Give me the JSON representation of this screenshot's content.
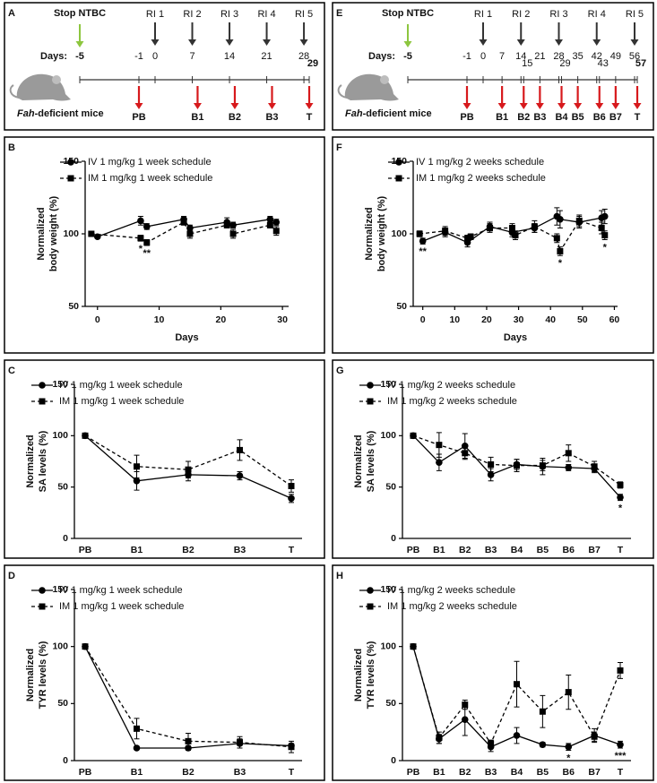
{
  "chart_data": [
    {
      "type": "timeline",
      "panel": "A",
      "stop_label": "Stop NTBC",
      "days_label": "Days:",
      "subject_italic": "Fah",
      "subject": "-deficient mice",
      "day_ticks": [
        -5,
        -1,
        0,
        7,
        14,
        21,
        28,
        29
      ],
      "injections": {
        "labels": [
          "RI 1",
          "RI 2",
          "RI 3",
          "RI 4",
          "RI 5"
        ],
        "days": [
          0,
          7,
          14,
          21,
          28
        ]
      },
      "samples": {
        "labels": [
          "PB",
          "B1",
          "B2",
          "B3",
          "T"
        ],
        "days": [
          -1,
          8,
          15,
          22,
          29
        ]
      },
      "colors": {
        "stop": "#8dc63f",
        "injection": "#333333",
        "sample": "#d7191c"
      }
    },
    {
      "type": "line",
      "panel": "B",
      "ylabel": [
        "Normalized",
        "body weight (%)"
      ],
      "xlabel": "Days",
      "xlim": [
        -2,
        31
      ],
      "xticks": [
        0,
        10,
        20,
        30
      ],
      "ylim": [
        50,
        150
      ],
      "yticks": [
        50,
        100,
        150
      ],
      "legend": "upper left",
      "series": [
        {
          "name": "IV 1 mg/kg 1 week schedule",
          "color": "#000000",
          "marker": "circle",
          "line_style": "solid",
          "x": [
            0,
            7,
            8,
            14,
            15,
            21,
            22,
            28,
            29
          ],
          "values": [
            98,
            109,
            105,
            110,
            104,
            108,
            106,
            110,
            108
          ],
          "errors": [
            1,
            3,
            2,
            2,
            2,
            3,
            2,
            2,
            2
          ]
        },
        {
          "name": "IM 1 mg/kg 1 week schedule",
          "color": "#000000",
          "marker": "square",
          "line_style": "dashed",
          "x": [
            -1,
            7,
            8,
            14,
            15,
            21,
            22,
            28,
            29
          ],
          "values": [
            100,
            97,
            94,
            108,
            100,
            106,
            100,
            106,
            102
          ],
          "errors": [
            1,
            2,
            2,
            2,
            3,
            2,
            3,
            2,
            3
          ]
        }
      ],
      "annotations": [
        {
          "text": "*",
          "x": 7
        },
        {
          "text": "**",
          "x": 8
        }
      ]
    },
    {
      "type": "line",
      "panel": "C",
      "ylabel": [
        "Normalized",
        "SA levels (%)"
      ],
      "categories": [
        "PB",
        "B1",
        "B2",
        "B3",
        "T"
      ],
      "ylim": [
        0,
        150
      ],
      "yticks": [
        0,
        50,
        100,
        150
      ],
      "legend": "upper left",
      "series": [
        {
          "name": "IV 1 mg/kg 1 week schedule",
          "color": "#000000",
          "marker": "circle",
          "line_style": "solid",
          "values": [
            100,
            56,
            62,
            61,
            39
          ],
          "errors": [
            0,
            9,
            6,
            4,
            4
          ]
        },
        {
          "name": "IM 1 mg/kg 1 week schedule",
          "color": "#000000",
          "marker": "square",
          "line_style": "dashed",
          "values": [
            100,
            70,
            67,
            86,
            51
          ],
          "errors": [
            0,
            11,
            8,
            10,
            6
          ]
        }
      ]
    },
    {
      "type": "line",
      "panel": "D",
      "ylabel": [
        "Normalized",
        "TYR levels (%)"
      ],
      "categories": [
        "PB",
        "B1",
        "B2",
        "B3",
        "T"
      ],
      "ylim": [
        0,
        150
      ],
      "yticks": [
        0,
        50,
        100,
        150
      ],
      "legend": "upper left",
      "series": [
        {
          "name": "IV 1 mg/kg 1 week schedule",
          "color": "#000000",
          "marker": "circle",
          "line_style": "solid",
          "values": [
            100,
            11,
            11,
            15,
            13
          ],
          "errors": [
            0,
            1,
            2,
            4,
            2
          ]
        },
        {
          "name": "IM 1 mg/kg 1 week schedule",
          "color": "#000000",
          "marker": "square",
          "line_style": "dashed",
          "values": [
            100,
            28,
            17,
            16,
            12
          ],
          "errors": [
            0,
            9,
            7,
            5,
            5
          ]
        }
      ]
    },
    {
      "type": "timeline",
      "panel": "E",
      "stop_label": "Stop NTBC",
      "days_label": "Days:",
      "subject_italic": "Fah",
      "subject": "-deficient mice",
      "day_ticks": [
        -5,
        -1,
        0,
        7,
        14,
        15,
        21,
        28,
        29,
        35,
        42,
        43,
        49,
        56,
        57
      ],
      "injections": {
        "labels": [
          "RI 1",
          "RI 2",
          "RI 3",
          "RI 4",
          "RI 5"
        ],
        "days": [
          0,
          14,
          28,
          42,
          56
        ]
      },
      "samples": {
        "labels": [
          "PB",
          "B1",
          "B2",
          "B3",
          "B4",
          "B5",
          "B6",
          "B7",
          "T"
        ],
        "days": [
          -1,
          7,
          15,
          21,
          29,
          35,
          43,
          49,
          57
        ]
      },
      "colors": {
        "stop": "#8dc63f",
        "injection": "#333333",
        "sample": "#d7191c"
      }
    },
    {
      "type": "line",
      "panel": "F",
      "ylabel": [
        "Normalized",
        "body weight (%)"
      ],
      "xlabel": "Days",
      "xlim": [
        -3,
        61
      ],
      "xticks": [
        0,
        10,
        20,
        30,
        40,
        50,
        60
      ],
      "ylim": [
        50,
        150
      ],
      "yticks": [
        50,
        100,
        150
      ],
      "legend": "upper left",
      "series": [
        {
          "name": "IV 1 mg/kg 2 weeks schedule",
          "color": "#000000",
          "marker": "circle",
          "line_style": "solid",
          "x": [
            0,
            7,
            14,
            21,
            28,
            35,
            42,
            43,
            49,
            56,
            57
          ],
          "values": [
            95,
            101,
            94,
            105,
            101,
            104,
            112,
            110,
            108,
            111,
            112
          ],
          "errors": [
            2,
            3,
            3,
            3,
            3,
            3,
            6,
            6,
            4,
            5,
            5
          ]
        },
        {
          "name": "IM 1 mg/kg 2 weeks schedule",
          "color": "#000000",
          "marker": "square",
          "line_style": "dashed",
          "x": [
            -1,
            7,
            14,
            15,
            21,
            28,
            29,
            35,
            42,
            43,
            49,
            56,
            57
          ],
          "values": [
            100,
            102,
            97,
            98,
            104,
            104,
            99,
            105,
            97,
            88,
            109,
            104,
            99
          ],
          "errors": [
            2,
            3,
            2,
            2,
            3,
            3,
            3,
            4,
            3,
            3,
            4,
            4,
            3
          ]
        }
      ],
      "annotations": [
        {
          "text": "**",
          "x": 0
        },
        {
          "text": "*",
          "x": 43
        },
        {
          "text": "*",
          "x": 57
        }
      ]
    },
    {
      "type": "line",
      "panel": "G",
      "ylabel": [
        "Normalized",
        "SA levels (%)"
      ],
      "categories": [
        "PB",
        "B1",
        "B2",
        "B3",
        "B4",
        "B5",
        "B6",
        "B7",
        "T"
      ],
      "ylim": [
        0,
        150
      ],
      "yticks": [
        0,
        50,
        100,
        150
      ],
      "legend": "upper left",
      "series": [
        {
          "name": "IV 1 mg/kg 2 weeks schedule",
          "color": "#000000",
          "marker": "circle",
          "line_style": "solid",
          "values": [
            100,
            74,
            90,
            62,
            72,
            70,
            69,
            68,
            40
          ],
          "errors": [
            0,
            8,
            12,
            6,
            5,
            8,
            3,
            4,
            3
          ]
        },
        {
          "name": "IM 1 mg/kg 2 weeks schedule",
          "color": "#000000",
          "marker": "square",
          "line_style": "dashed",
          "values": [
            100,
            91,
            83,
            72,
            71,
            71,
            83,
            70,
            52
          ],
          "errors": [
            0,
            12,
            6,
            7,
            6,
            5,
            8,
            5,
            3
          ]
        }
      ],
      "annotations": [
        {
          "text": "*",
          "x": 8
        }
      ]
    },
    {
      "type": "line",
      "panel": "H",
      "ylabel": [
        "Normalized",
        "TYR levels (%)"
      ],
      "categories": [
        "PB",
        "B1",
        "B2",
        "B3",
        "B4",
        "B5",
        "B6",
        "B7",
        "T"
      ],
      "ylim": [
        0,
        150
      ],
      "yticks": [
        0,
        50,
        100,
        150
      ],
      "legend": "upper left",
      "series": [
        {
          "name": "IV 1 mg/kg 2 weeks schedule",
          "color": "#000000",
          "marker": "circle",
          "line_style": "solid",
          "values": [
            100,
            19,
            36,
            12,
            22,
            14,
            12,
            22,
            14
          ],
          "errors": [
            0,
            4,
            14,
            4,
            7,
            2,
            3,
            6,
            3
          ]
        },
        {
          "name": "IM 1 mg/kg 2 weeks schedule",
          "color": "#000000",
          "marker": "square",
          "line_style": "dashed",
          "values": [
            100,
            20,
            49,
            15,
            67,
            43,
            60,
            21,
            79
          ],
          "errors": [
            0,
            5,
            4,
            3,
            20,
            14,
            15,
            4,
            7
          ]
        }
      ],
      "annotations": [
        {
          "text": "*",
          "x": 6
        },
        {
          "text": "***",
          "x": 8
        }
      ]
    }
  ]
}
